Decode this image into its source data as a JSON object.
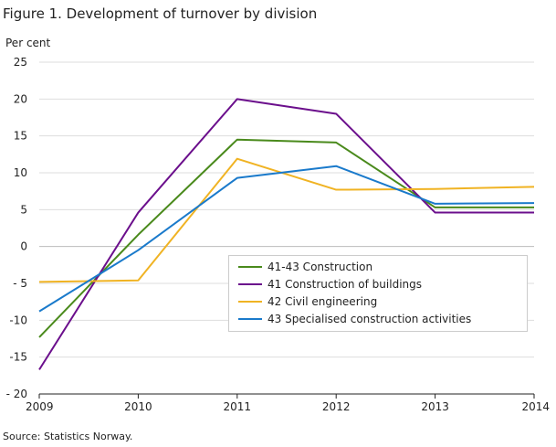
{
  "chart_data": {
    "type": "line",
    "title": "Figure 1. Development of turnover by division",
    "ylabel": "Per cent",
    "xlabel": "",
    "x": [
      "2009",
      "2010",
      "2011",
      "2012",
      "2013",
      "2014"
    ],
    "ylim": [
      -20,
      25
    ],
    "yticks": [
      25,
      20,
      15,
      10,
      5,
      0,
      -5,
      -10,
      -15,
      -20
    ],
    "ytick_labels": [
      "25",
      "20",
      "15",
      "10",
      "5",
      "0",
      "- 5",
      "-10",
      "-15",
      "- 20"
    ],
    "grid": true,
    "legend_position": "bottom-right",
    "series": [
      {
        "name": "41-43 Construction",
        "color": "#4a8a1c",
        "values": [
          -12.3,
          1.6,
          14.5,
          14.1,
          5.3,
          5.3
        ]
      },
      {
        "name": "41 Construction of buildings",
        "color": "#6b0f8c",
        "values": [
          -16.7,
          4.6,
          20.0,
          18.0,
          4.6,
          4.6
        ]
      },
      {
        "name": "42 Civil engineering",
        "color": "#f0b323",
        "values": [
          -4.8,
          -4.6,
          11.9,
          7.7,
          7.8,
          8.1
        ]
      },
      {
        "name": "43 Specialised construction activities",
        "color": "#1a7acb",
        "values": [
          -8.8,
          -0.5,
          9.3,
          10.9,
          5.8,
          5.9
        ]
      }
    ],
    "source": "Source: Statistics Norway."
  }
}
